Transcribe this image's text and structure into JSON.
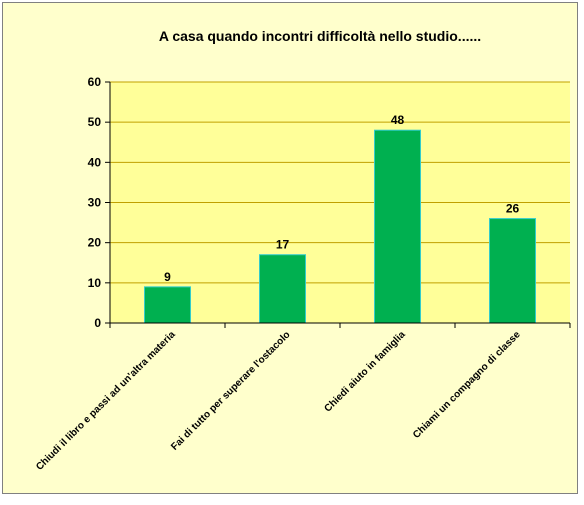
{
  "colors": {
    "chart_background": "#ffffcc",
    "plot_background": "#ffff99",
    "bar_fill": "#00b050",
    "bar_stroke": "#33cccc",
    "gridline": "#c0a000"
  },
  "chart_data": {
    "type": "bar",
    "title": "A  casa quando incontri difficoltà nello studio......",
    "categories": [
      "Chiudi il libro e passi ad un'altra materia",
      "Fai di tutto per superare l'ostacolo",
      "Chiedi aiuto in famiglia",
      "Chiami un compagno di classe"
    ],
    "values": [
      9,
      17,
      48,
      26
    ],
    "data_labels": [
      "9",
      "17",
      "48",
      "26"
    ],
    "xlabel": "",
    "ylabel": "",
    "ylim": [
      0,
      60
    ],
    "yticks": [
      0,
      10,
      20,
      30,
      40,
      50,
      60
    ],
    "ytick_labels": [
      "0",
      "10",
      "20",
      "30",
      "40",
      "50",
      "60"
    ],
    "grid": true,
    "legend": "none"
  }
}
